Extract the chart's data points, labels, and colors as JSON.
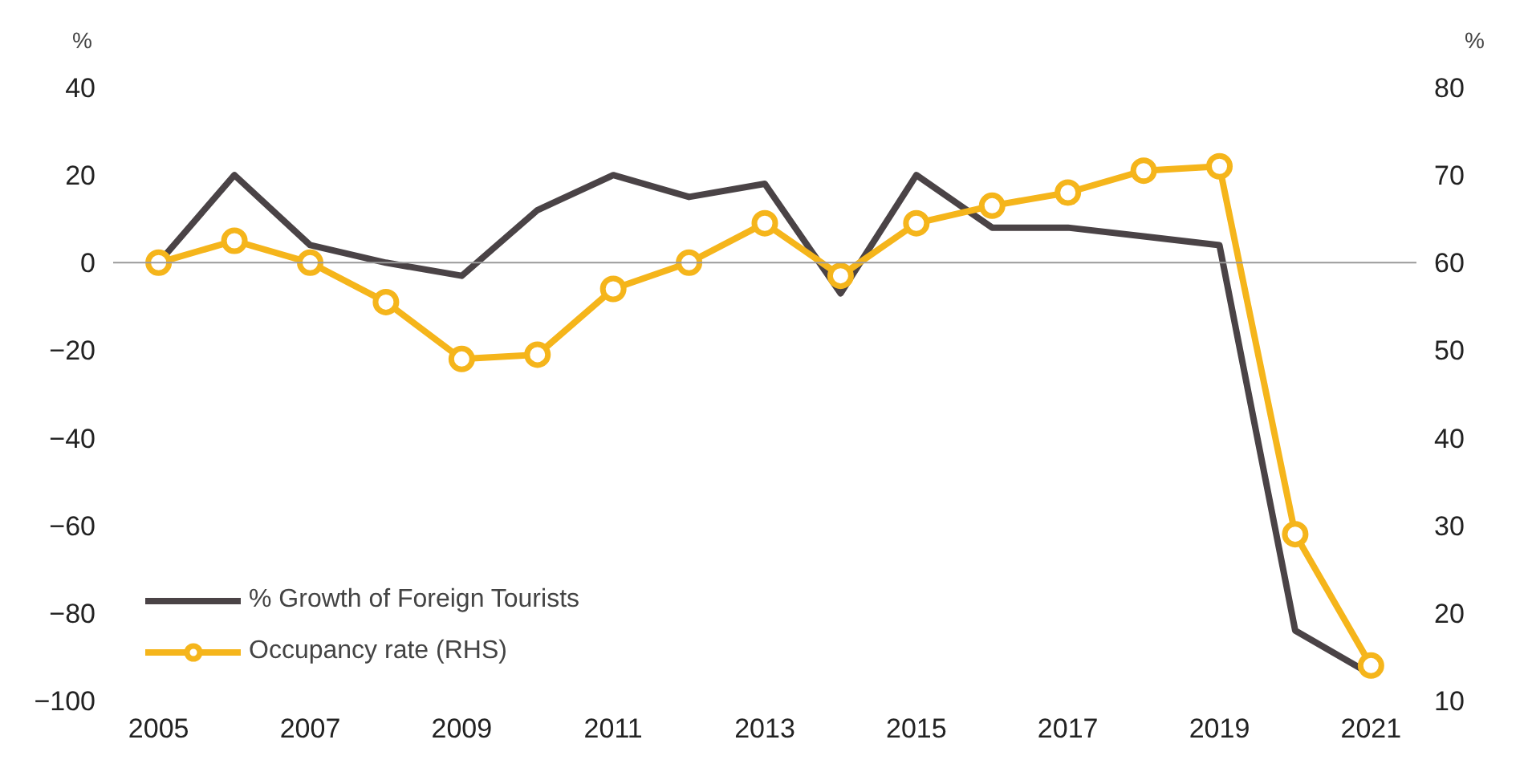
{
  "chart_data": {
    "type": "line",
    "x": [
      2005,
      2006,
      2007,
      2008,
      2009,
      2010,
      2011,
      2012,
      2013,
      2014,
      2015,
      2016,
      2017,
      2018,
      2019,
      2020,
      2021
    ],
    "series": [
      {
        "name": "% Growth of Foreign Tourists",
        "color": "#4a4346",
        "marker": "none",
        "values": [
          0,
          20,
          4,
          0,
          -3,
          12,
          20,
          15,
          18,
          -7,
          20,
          8,
          8,
          6,
          4,
          -84,
          -94
        ]
      },
      {
        "name": "Occupancy rate (RHS)",
        "color": "#f5b51b",
        "marker": "circle",
        "axis": "y2",
        "values": [
          60,
          62.5,
          60,
          55.5,
          49,
          49.5,
          57,
          60,
          64.5,
          58.5,
          64.5,
          66.5,
          68,
          70.5,
          71,
          29,
          14
        ]
      }
    ],
    "ylabel": "%",
    "y2label": "%",
    "xlim": [
      2004.4,
      2021.6
    ],
    "xticks": [
      2005,
      2007,
      2009,
      2011,
      2013,
      2015,
      2017,
      2019,
      2021
    ],
    "ylim": [
      -100,
      40
    ],
    "yticks": [
      -100,
      -80,
      -60,
      -40,
      -20,
      0,
      20,
      40
    ],
    "y2lim": [
      10,
      80
    ],
    "y2ticks": [
      10,
      20,
      30,
      40,
      50,
      60,
      70,
      80
    ],
    "ref_lines": [
      {
        "axis": "y",
        "value": 0,
        "color": "#9a9a9a"
      }
    ],
    "grid": false,
    "legend": "bottom left",
    "line_style": "solid"
  }
}
